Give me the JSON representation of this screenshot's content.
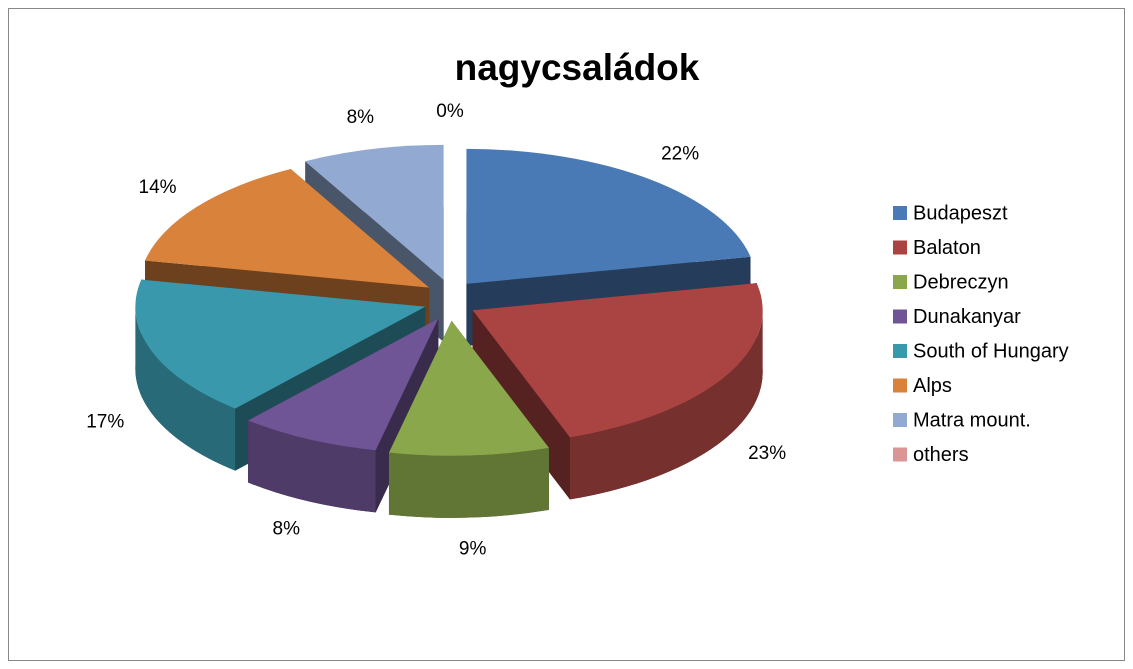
{
  "chart_data": {
    "type": "pie",
    "title": "nagycsaládok",
    "categories": [
      "Budapeszt",
      "Balaton",
      "Debreczyn",
      "Dunakanyar",
      "South of Hungary",
      "Alps",
      "Matra mount.",
      "others"
    ],
    "values": [
      22,
      23,
      9,
      8,
      17,
      14,
      8,
      0
    ],
    "value_labels": [
      "22%",
      "23%",
      "9%",
      "8%",
      "17%",
      "14%",
      "8%",
      "0%"
    ],
    "colors": [
      "#4a7ab5",
      "#a94442",
      "#8aa84b",
      "#6f5595",
      "#3a98ad",
      "#d9823b",
      "#92a9d1",
      "#d99694"
    ],
    "legend": "right"
  }
}
